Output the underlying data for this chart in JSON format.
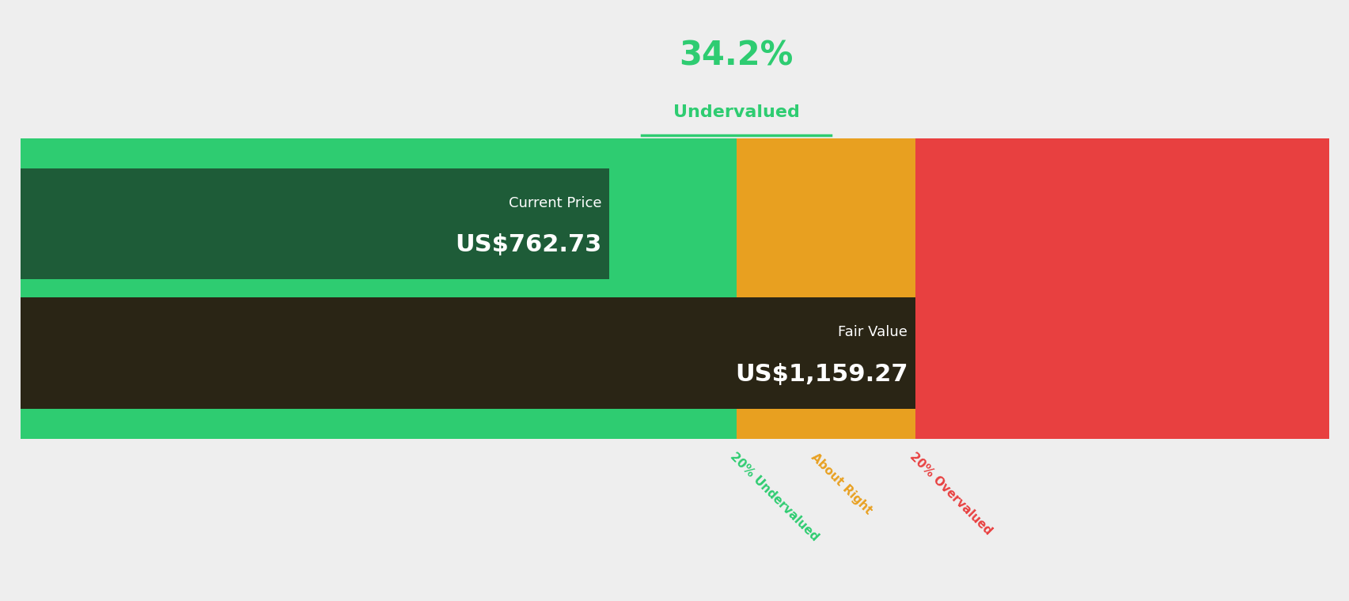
{
  "background_color": "#eeeeee",
  "percent_text": "34.2%",
  "percent_color": "#2ecc71",
  "undervalued_text": "Undervalued",
  "undervalued_color": "#2ecc71",
  "current_price_label": "Current Price",
  "current_price_value": "US$762.73",
  "fair_value_label": "Fair Value",
  "fair_value_value": "US$1,159.27",
  "current_price": 762.73,
  "fair_value": 1159.27,
  "bar_green_light": "#2ecc71",
  "bar_green_dark": "#1e5c38",
  "bar_fair_dark": "#2a2515",
  "bar_yellow": "#e8a020",
  "bar_red": "#e84040",
  "label_20under_color": "#2ecc71",
  "label_about_color": "#e8a020",
  "label_20over_color": "#e84040",
  "underline_color": "#2ecc71",
  "figsize": [
    17.06,
    7.6
  ],
  "dpi": 100
}
